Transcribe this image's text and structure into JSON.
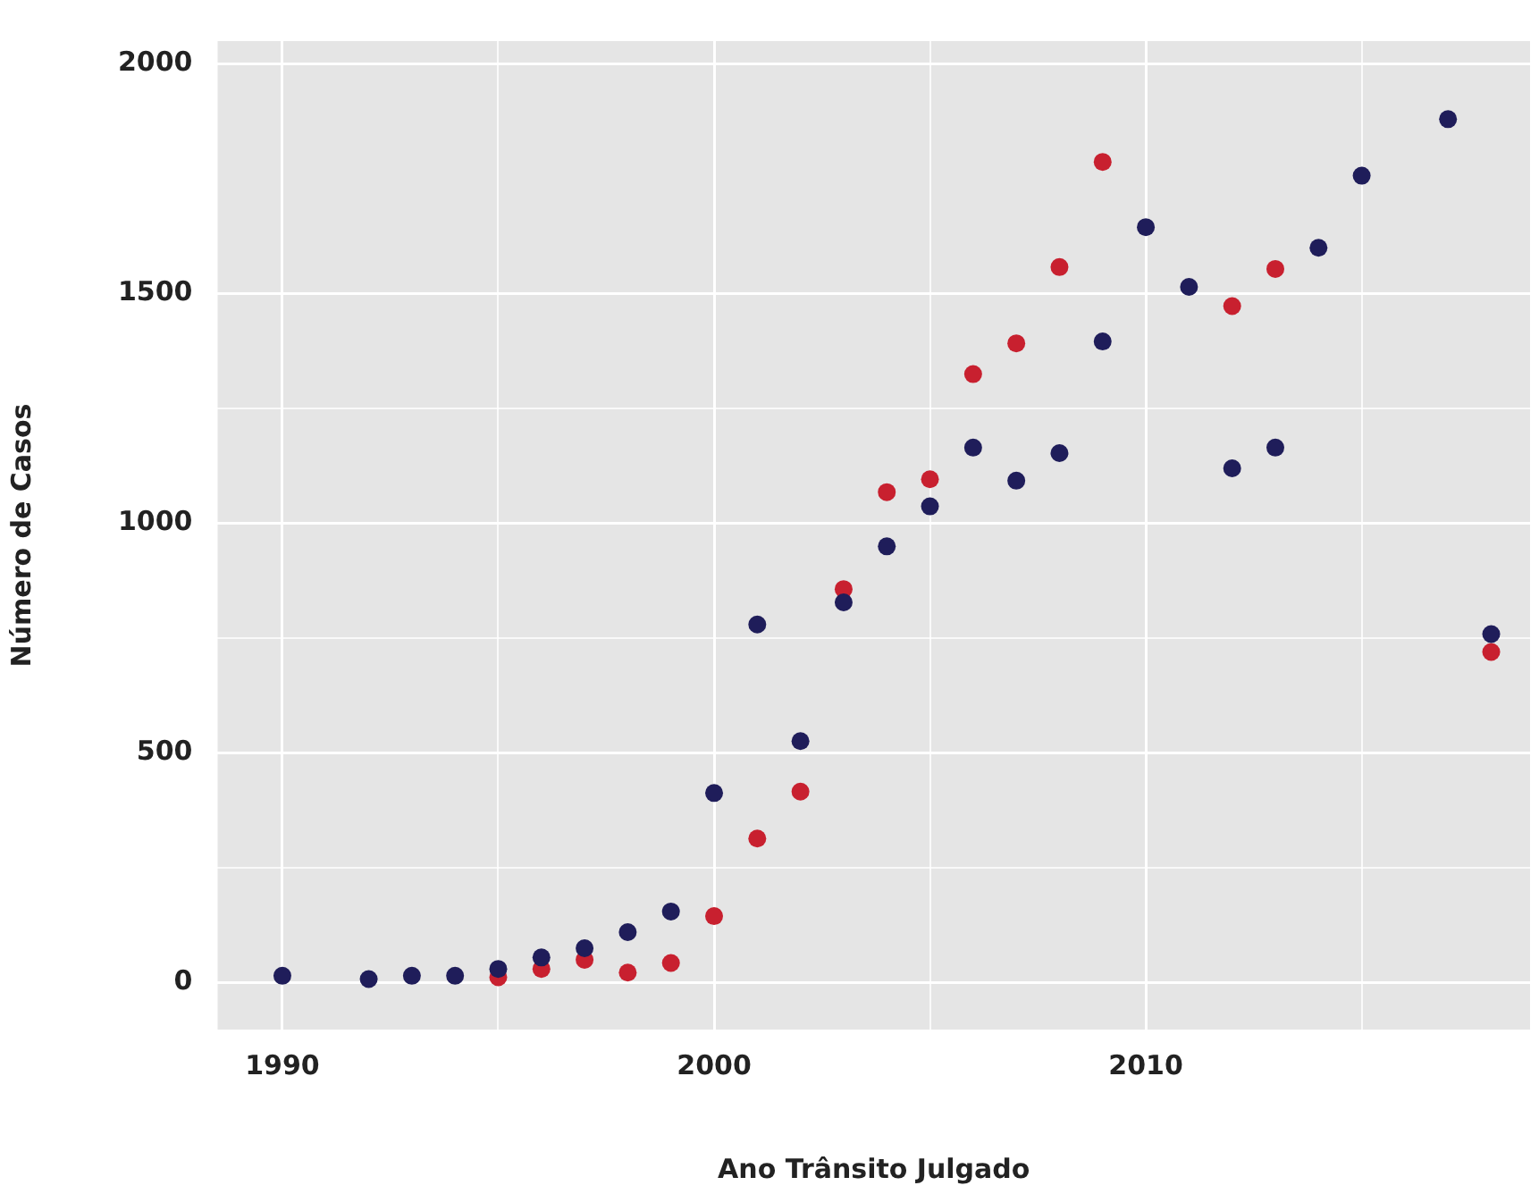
{
  "chart_data": {
    "type": "scatter",
    "xlabel": "Ano Trânsito Julgado",
    "ylabel": "Número de Casos",
    "xlim": [
      1988.5,
      2018.9
    ],
    "xticks": [
      1990,
      {
        "value": 1995,
        "label": null
      },
      2000,
      {
        "value": 2005,
        "label": null
      },
      2010,
      {
        "value": 2015,
        "label": null
      }
    ],
    "ylim": [
      -102,
      2050
    ],
    "yticks": [
      0,
      {
        "value": 250,
        "label": null
      },
      500,
      {
        "value": 750,
        "label": null
      },
      1000,
      {
        "value": 1250,
        "label": null
      },
      1500,
      2000
    ],
    "grid": true,
    "legend": false,
    "marker": "circle",
    "series": [
      {
        "color": "#1f1d5a",
        "x": [
          1990,
          1992,
          1993,
          1994,
          1995,
          1996,
          1997,
          1998,
          1999,
          2000,
          2001,
          2002,
          2003,
          2004,
          2005,
          2006,
          2007,
          2008,
          2009,
          2010,
          2011,
          2012,
          2013,
          2014,
          2015,
          2017,
          2018
        ],
        "values": [
          15,
          8,
          15,
          15,
          30,
          55,
          75,
          110,
          155,
          413,
          780,
          526,
          828,
          950,
          1037,
          1165,
          1093,
          1153,
          1396,
          1645,
          1515,
          1120,
          1165,
          1600,
          1757,
          1880,
          759
        ]
      },
      {
        "color": "#c8202f",
        "x": [
          1995,
          1996,
          1997,
          1998,
          1999,
          2000,
          2001,
          2002,
          2003,
          2004,
          2005,
          2006,
          2007,
          2008,
          2009,
          2012,
          2013,
          2018
        ],
        "values": [
          12,
          30,
          50,
          22,
          43,
          145,
          314,
          416,
          857,
          1068,
          1096,
          1325,
          1392,
          1558,
          1787,
          1473,
          1554,
          720
        ]
      }
    ]
  }
}
